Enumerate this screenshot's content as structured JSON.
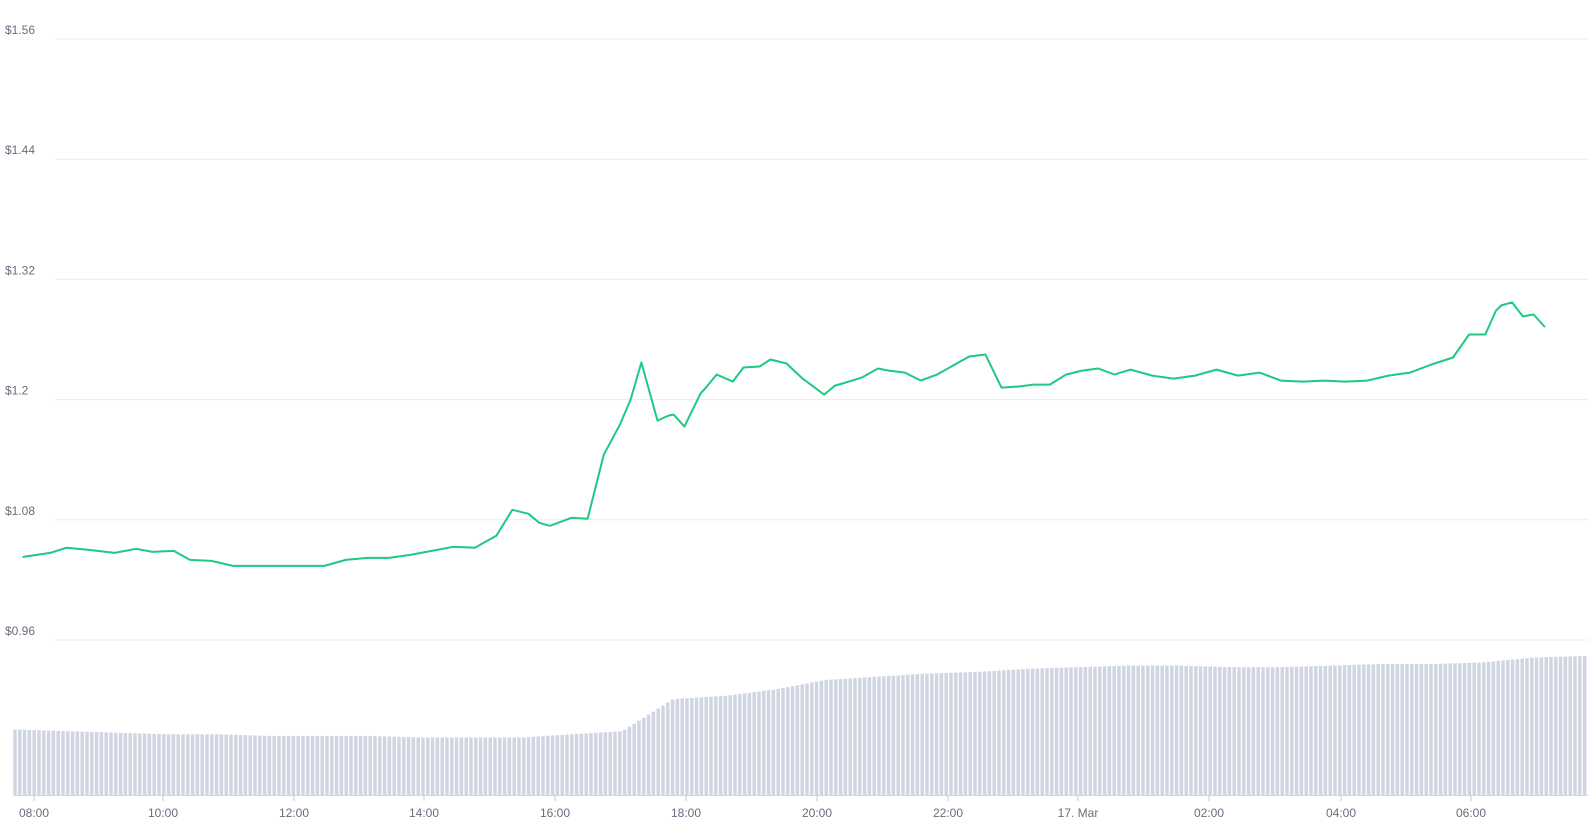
{
  "chart_data": {
    "type": "line",
    "title": "",
    "xlabel": "",
    "ylabel": "",
    "y_tick_labels": [
      "$0.96",
      "$1.08",
      "$1.2",
      "$1.32",
      "$1.44",
      "$1.56"
    ],
    "y_ticks": [
      0.96,
      1.08,
      1.2,
      1.32,
      1.44,
      1.56
    ],
    "ylim": [
      0.96,
      1.56
    ],
    "x_tick_labels": [
      "08:00",
      "10:00",
      "12:00",
      "14:00",
      "16:00",
      "18:00",
      "20:00",
      "22:00",
      "17. Mar",
      "02:00",
      "04:00",
      "06:00"
    ],
    "grid": true,
    "legend": "none",
    "colors": {
      "price_line": "#1ec981",
      "volume_bars": "#cfd5e2",
      "grid": "#ececec",
      "axis_text": "#6b6b80"
    },
    "series": [
      {
        "kind": "line",
        "x": [
          "07:50",
          "08:15",
          "08:30",
          "08:50",
          "09:15",
          "09:35",
          "09:50",
          "10:10",
          "10:25",
          "10:45",
          "11:05",
          "11:30",
          "11:50",
          "12:10",
          "12:30",
          "12:50",
          "13:10",
          "13:30",
          "13:50",
          "14:10",
          "14:30",
          "14:50",
          "15:10",
          "15:25",
          "15:40",
          "15:50",
          "16:00",
          "16:20",
          "16:35",
          "16:50",
          "17:05",
          "17:15",
          "17:25",
          "17:40",
          "17:50",
          "17:55",
          "18:05",
          "18:20",
          "18:25",
          "18:35",
          "18:50",
          "19:00",
          "19:15",
          "19:25",
          "19:40",
          "19:55",
          "20:05",
          "20:15",
          "20:25",
          "20:35",
          "20:50",
          "21:05",
          "21:15",
          "21:30",
          "21:45",
          "22:00",
          "22:15",
          "22:30",
          "22:45",
          "23:00",
          "23:15",
          "23:30",
          "23:45",
          "00:00",
          "00:15",
          "00:30",
          "00:45",
          "01:00",
          "01:20",
          "01:40",
          "02:00",
          "02:20",
          "02:40",
          "03:00",
          "03:20",
          "03:40",
          "04:00",
          "04:20",
          "04:40",
          "05:00",
          "05:20",
          "05:40",
          "06:00",
          "06:15",
          "06:30",
          "06:40",
          "06:45",
          "06:55",
          "07:05",
          "07:15",
          "07:25"
        ],
        "y": [
          1.043,
          1.047,
          1.052,
          1.05,
          1.047,
          1.051,
          1.048,
          1.049,
          1.04,
          1.039,
          1.034,
          1.034,
          1.034,
          1.034,
          1.034,
          1.04,
          1.042,
          1.042,
          1.045,
          1.049,
          1.053,
          1.052,
          1.064,
          1.09,
          1.086,
          1.077,
          1.074,
          1.082,
          1.081,
          1.145,
          1.175,
          1.2,
          1.237,
          1.179,
          1.184,
          1.185,
          1.173,
          1.206,
          1.212,
          1.225,
          1.218,
          1.232,
          1.233,
          1.24,
          1.236,
          1.221,
          1.213,
          1.205,
          1.214,
          1.217,
          1.222,
          1.231,
          1.229,
          1.227,
          1.219,
          1.225,
          1.234,
          1.243,
          1.245,
          1.212,
          1.213,
          1.215,
          1.215,
          1.225,
          1.229,
          1.231,
          1.225,
          1.23,
          1.224,
          1.221,
          1.224,
          1.23,
          1.224,
          1.227,
          1.219,
          1.218,
          1.219,
          1.218,
          1.219,
          1.224,
          1.227,
          1.235,
          1.242,
          1.265,
          1.265,
          1.289,
          1.294,
          1.297,
          1.283,
          1.285,
          1.273
        ]
      },
      {
        "kind": "bar",
        "name": "volume",
        "x_start": "07:50",
        "x_end": "07:35",
        "relative_heights_by_hour": [
          0.41,
          0.4,
          0.39,
          0.38,
          0.38,
          0.37,
          0.37,
          0.37,
          0.36,
          0.36,
          0.36,
          0.38,
          0.4,
          0.6,
          0.62,
          0.66,
          0.72,
          0.74,
          0.76,
          0.77,
          0.79,
          0.8,
          0.81,
          0.81,
          0.8,
          0.8,
          0.81,
          0.82,
          0.82,
          0.83,
          0.86,
          0.87
        ]
      }
    ]
  }
}
